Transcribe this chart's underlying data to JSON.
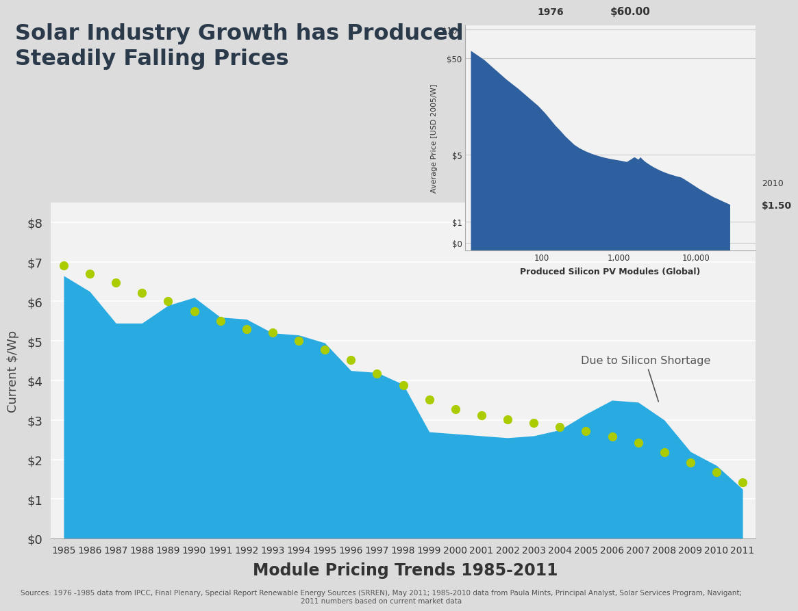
{
  "title": "Solar Industry Growth has Produced\nSteadily Falling Prices",
  "xlabel": "Module Pricing Trends 1985-2011",
  "ylabel": "Current $/Wp",
  "background_color": "#dcdcdc",
  "plot_bg_color": "#f2f2f2",
  "area_color": "#29ABE2",
  "dot_color": "#AACC00",
  "years": [
    1985,
    1986,
    1987,
    1988,
    1989,
    1990,
    1991,
    1992,
    1993,
    1994,
    1995,
    1996,
    1997,
    1998,
    1999,
    2000,
    2001,
    2002,
    2003,
    2004,
    2005,
    2006,
    2007,
    2008,
    2009,
    2010,
    2011
  ],
  "area_values": [
    6.65,
    6.25,
    5.45,
    5.45,
    5.9,
    6.1,
    5.6,
    5.55,
    5.2,
    5.15,
    4.95,
    4.25,
    4.2,
    3.9,
    2.7,
    2.65,
    2.6,
    2.55,
    2.6,
    2.75,
    3.15,
    3.5,
    3.45,
    3.0,
    2.2,
    1.85,
    1.25
  ],
  "dot_values": [
    6.9,
    6.7,
    6.48,
    6.22,
    6.0,
    5.75,
    5.5,
    5.3,
    5.22,
    5.0,
    4.78,
    4.52,
    4.18,
    3.88,
    3.52,
    3.28,
    3.12,
    3.02,
    2.93,
    2.82,
    2.72,
    2.58,
    2.42,
    2.18,
    1.93,
    1.68,
    1.43
  ],
  "yticks": [
    0,
    1,
    2,
    3,
    4,
    5,
    6,
    7,
    8
  ],
  "ylim": [
    0,
    8.5
  ],
  "sources_text": "Sources: 1976 -1985 data from IPCC, Final Plenary, Special Report Renewable Energy Sources (SRREN), May 2011; 1985-2010 data from Paula Mints, Principal Analyst, Solar Services Program, Navigant;\n2011 numbers based on current market data",
  "annotation_text": "Due to Silicon Shortage",
  "inset_dark_color": "#2E5F9E",
  "inset_title_year": "1976",
  "inset_price_label": "$60.00",
  "inset_end_year": "2010",
  "inset_end_price": "$1.50",
  "inset_xlabel": "Produced Silicon PV Modules (Global)",
  "inset_ylabel": "Average Price [USD 2005/W]"
}
